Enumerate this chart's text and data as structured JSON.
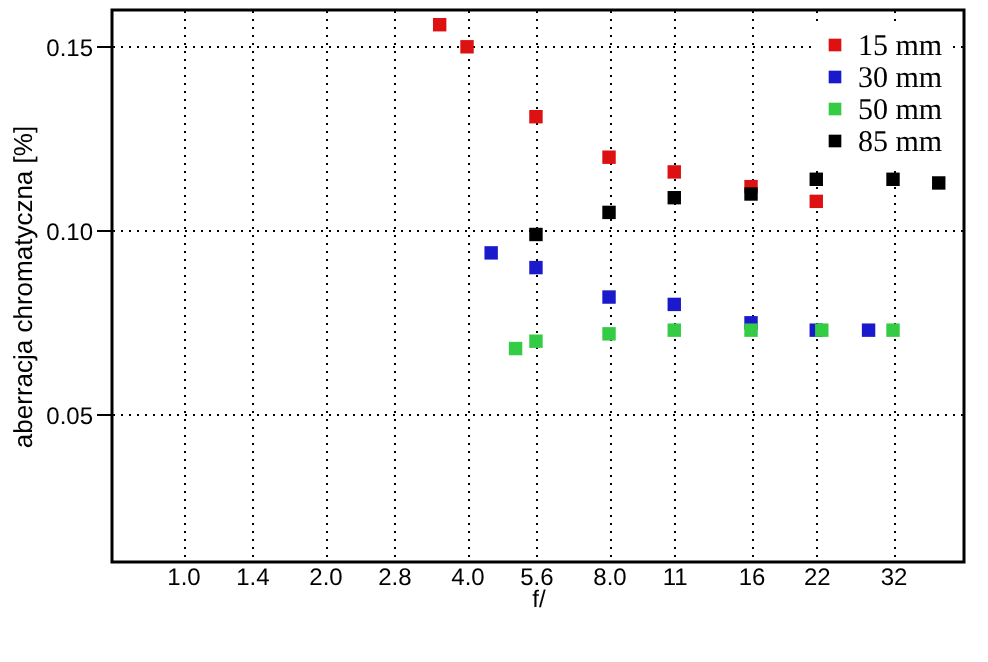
{
  "chart_data": {
    "type": "scatter",
    "xlabel": "f/",
    "ylabel": "aberracja chromatyczna [%]",
    "log": "x",
    "marker": "square",
    "grid": true,
    "legend": "top right",
    "xlim": [
      0.707,
      45.25
    ],
    "ylim": [
      0.01,
      0.16
    ],
    "xticks": [
      {
        "value": 1,
        "label": "1.0"
      },
      1.4,
      {
        "value": 2,
        "label": "2.0"
      },
      2.8,
      {
        "value": 4,
        "label": "4.0"
      },
      5.6,
      {
        "value": 8,
        "label": "8.0"
      },
      11,
      16,
      22,
      32
    ],
    "yticks": [
      {
        "value": 0.05,
        "label": "0.05"
      },
      {
        "value": 0.1,
        "label": "0.10"
      },
      {
        "value": 0.15,
        "label": "0.15"
      }
    ],
    "series": [
      {
        "name": "15 mm",
        "color": "#dd1111",
        "x": [
          3.5,
          4.0,
          5.6,
          8,
          11,
          16,
          22
        ],
        "values": [
          0.156,
          0.15,
          0.131,
          0.12,
          0.116,
          0.112,
          0.108
        ]
      },
      {
        "name": "30 mm",
        "color": "#1a1acc",
        "x": [
          4.5,
          5.6,
          8,
          11,
          16,
          22,
          28.4
        ],
        "values": [
          0.094,
          0.09,
          0.082,
          0.08,
          0.075,
          0.073,
          0.073
        ]
      },
      {
        "name": "50 mm",
        "color": "#33cc44",
        "x": [
          5.07,
          5.6,
          8,
          11,
          16,
          22.6,
          32
        ],
        "values": [
          0.068,
          0.07,
          0.072,
          0.073,
          0.073,
          0.073,
          0.073
        ]
      },
      {
        "name": "85 mm",
        "color": "#000000",
        "x": [
          5.6,
          8,
          11,
          16,
          22,
          32,
          40
        ],
        "values": [
          0.099,
          0.105,
          0.109,
          0.11,
          0.114,
          0.114,
          0.113
        ]
      }
    ]
  }
}
